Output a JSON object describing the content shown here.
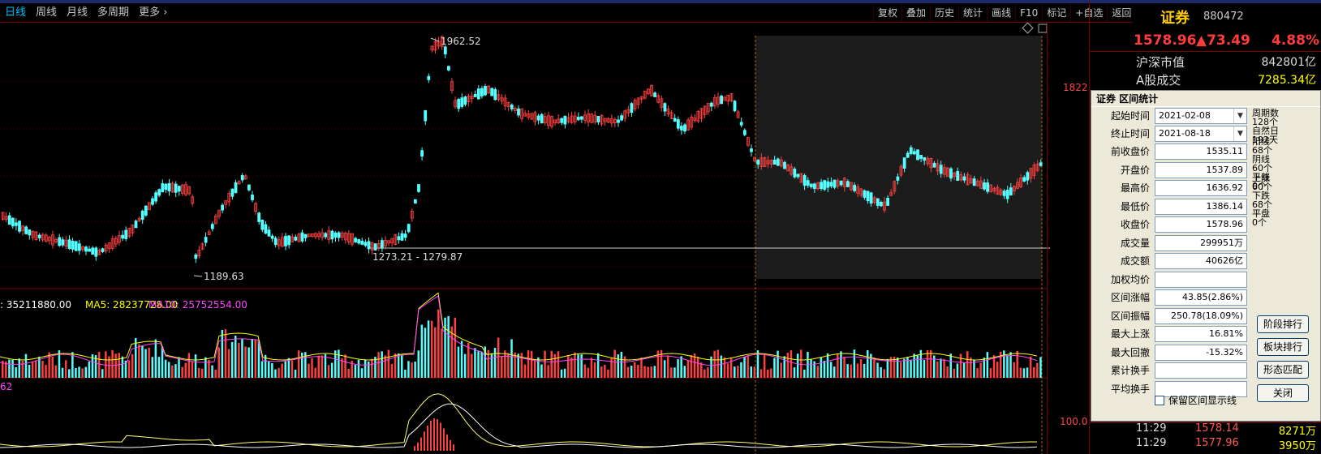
{
  "toolbar": {
    "tabs": [
      "日线",
      "周线",
      "月线",
      "多周期",
      "更多"
    ],
    "active_tab": "日线",
    "tools": [
      "复权",
      "叠加",
      "历史",
      "统计",
      "画线",
      "F10",
      "标记",
      "+自选",
      "返回"
    ]
  },
  "main_chart": {
    "high_label": "1962.52",
    "low_label": "1189.63",
    "range_label": "1273.21 - 1279.87",
    "price_axis_label": "1822"
  },
  "volume_panel": {
    "vol_label": ": 35211880.00",
    "ma5_label": "MA5: 28237728.00",
    "ma10_label": "MA10: 25752554.00",
    "colors": {
      "vol": "#ffffff",
      "ma5": "#ffff00",
      "ma10": "#ff44ff"
    }
  },
  "indicator_panel": {
    "label": "62",
    "axis_label": "100.0"
  },
  "info": {
    "name": "证券",
    "code": "880472",
    "price": "1578.96",
    "change": "▲73.49",
    "pct": "4.88%",
    "market_cap_label": "沪深市值",
    "market_cap_value": "842801亿",
    "turnover_label": "A股成交",
    "turnover_value": "7285.34亿"
  },
  "ticks": [
    {
      "time": "11:29",
      "price": "1578.14",
      "vol": "8271万"
    },
    {
      "time": "11:29",
      "price": "1577.96",
      "vol": "3950万"
    }
  ],
  "dialog": {
    "title": "证券 区间统计",
    "start_label": "起始时间",
    "start_value": "2021-02-08",
    "end_label": "终止时间",
    "end_value": "2021-08-18",
    "fields": [
      {
        "label": "前收盘价",
        "value": "1535.11"
      },
      {
        "label": "开盘价",
        "value": "1537.89"
      },
      {
        "label": "最高价",
        "value": "1636.92"
      },
      {
        "label": "最低价",
        "value": "1386.14"
      },
      {
        "label": "收盘价",
        "value": "1578.96"
      },
      {
        "label": "成交量",
        "value": "299951万"
      },
      {
        "label": "成交额",
        "value": "40626亿"
      },
      {
        "label": "加权均价",
        "value": ""
      },
      {
        "label": "区间涨幅",
        "value": "43.85(2.86%)"
      },
      {
        "label": "区间振幅",
        "value": "250.78(18.09%)"
      },
      {
        "label": "最大上涨",
        "value": "16.81%"
      },
      {
        "label": "最大回撤",
        "value": "-15.32%"
      },
      {
        "label": "累计换手",
        "value": ""
      },
      {
        "label": "平均换手",
        "value": ""
      }
    ],
    "stats": {
      "period_label": "周期数",
      "period_value": "128个",
      "natural_label": "自然日",
      "natural_value": "192天",
      "yang_label": "阳线",
      "yang_value": "68个",
      "yin_label": "阴线",
      "yin_value": "60个",
      "flat_label": "平线",
      "flat_value": "0个",
      "up_label": "上涨",
      "up_value": "60个",
      "down_label": "下跌",
      "down_value": "68个",
      "even_label": "平盘",
      "even_value": "0个"
    },
    "buttons": [
      "阶段排行",
      "板块排行",
      "形态匹配",
      "关闭"
    ],
    "checkbox_label": "保留区间显示线"
  }
}
